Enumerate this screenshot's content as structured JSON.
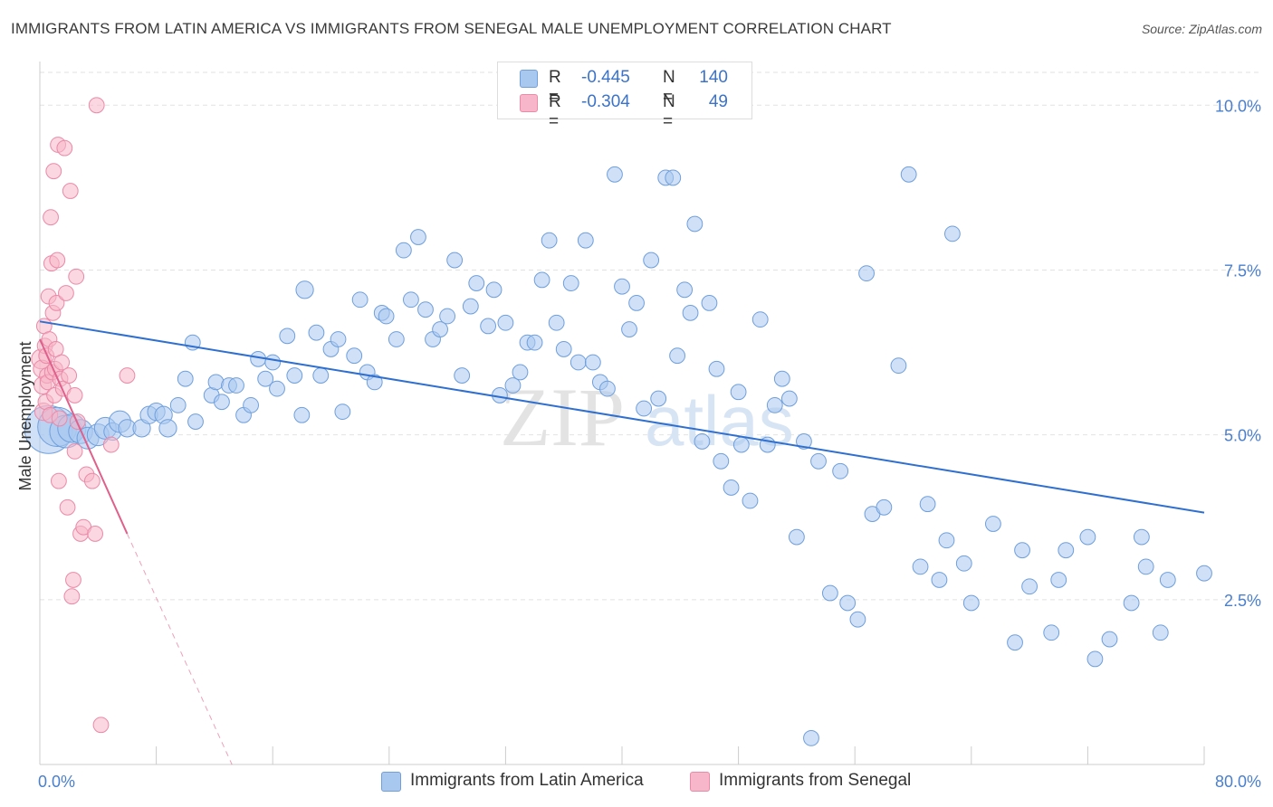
{
  "title": "IMMIGRANTS FROM LATIN AMERICA VS IMMIGRANTS FROM SENEGAL MALE UNEMPLOYMENT CORRELATION CHART",
  "source": "Source: ZipAtlas.com",
  "watermark": {
    "zip": "ZIP",
    "atlas": "atlas"
  },
  "legend": {
    "series1": {
      "r_label": "R =",
      "r_value": "-0.445",
      "n_label": "N =",
      "n_value": "140"
    },
    "series2": {
      "r_label": "R =",
      "r_value": "-0.304",
      "n_label": "N =",
      "n_value": "49"
    }
  },
  "chart_data": {
    "type": "scatter",
    "ylabel": "Male Unemployment",
    "xlim": [
      0,
      80
    ],
    "ylim": [
      0,
      10.8
    ],
    "x_tick_labels": [
      {
        "value": 0,
        "label": "0.0%"
      },
      {
        "value": 80,
        "label": "80.0%"
      }
    ],
    "y_ticks": [
      {
        "value": 2.5,
        "label": "2.5%"
      },
      {
        "value": 5.0,
        "label": "5.0%"
      },
      {
        "value": 7.5,
        "label": "7.5%"
      },
      {
        "value": 10.0,
        "label": "10.0%"
      }
    ],
    "grid": "horizontal-dashed",
    "colors": {
      "blue_fill": "#a9c8f0",
      "blue_stroke": "#6f9fdc",
      "blue_line": "#2f6fd0",
      "pink_fill": "#f7b6c9",
      "pink_stroke": "#ea8aa8",
      "pink_line": "#e0608c",
      "axis_label": "#4a7fce"
    },
    "series": [
      {
        "name": "Immigrants from Latin America",
        "trend": {
          "x0": 0,
          "y0": 6.72,
          "x1": 80,
          "y1": 3.82
        },
        "points": [
          [
            0.6,
            5.08,
            2.2
          ],
          [
            1.2,
            5.12,
            1.8
          ],
          [
            1.8,
            5.05,
            1.5
          ],
          [
            2.2,
            5.1,
            1.3
          ],
          [
            2.8,
            5.05,
            1.1
          ],
          [
            3.3,
            4.95,
            1.0
          ],
          [
            4,
            5.0,
            1.0
          ],
          [
            4.5,
            5.1,
            1.0
          ],
          [
            5,
            5.05,
            0.8
          ],
          [
            5.5,
            5.2,
            1.0
          ],
          [
            6,
            5.1,
            0.8
          ],
          [
            7,
            5.1,
            0.8
          ],
          [
            7.5,
            5.3,
            0.8
          ],
          [
            8,
            5.35,
            0.8
          ],
          [
            8.5,
            5.3,
            0.8
          ],
          [
            8.8,
            5.1,
            0.8
          ],
          [
            9.5,
            5.45,
            0.7
          ],
          [
            10,
            5.85,
            0.7
          ],
          [
            10.5,
            6.4,
            0.7
          ],
          [
            10.7,
            5.2,
            0.7
          ],
          [
            11.8,
            5.6,
            0.7
          ],
          [
            12.1,
            5.8,
            0.7
          ],
          [
            12.5,
            5.5,
            0.7
          ],
          [
            13,
            5.75,
            0.7
          ],
          [
            13.5,
            5.75,
            0.7
          ],
          [
            14,
            5.3,
            0.7
          ],
          [
            14.5,
            5.45,
            0.7
          ],
          [
            15,
            6.15,
            0.7
          ],
          [
            15.5,
            5.85,
            0.7
          ],
          [
            16,
            6.1,
            0.7
          ],
          [
            16.3,
            5.7,
            0.7
          ],
          [
            17,
            6.5,
            0.7
          ],
          [
            17.5,
            5.9,
            0.7
          ],
          [
            18,
            5.3,
            0.7
          ],
          [
            18.2,
            7.2,
            0.8
          ],
          [
            19,
            6.55,
            0.7
          ],
          [
            19.3,
            5.9,
            0.7
          ],
          [
            20,
            6.3,
            0.7
          ],
          [
            20.5,
            6.45,
            0.7
          ],
          [
            20.8,
            5.35,
            0.7
          ],
          [
            21.6,
            6.2,
            0.7
          ],
          [
            22,
            7.05,
            0.7
          ],
          [
            22.5,
            5.95,
            0.7
          ],
          [
            23,
            5.8,
            0.7
          ],
          [
            23.5,
            6.85,
            0.7
          ],
          [
            23.8,
            6.8,
            0.7
          ],
          [
            24.5,
            6.45,
            0.7
          ],
          [
            25,
            7.8,
            0.7
          ],
          [
            25.5,
            7.05,
            0.7
          ],
          [
            26,
            8.0,
            0.7
          ],
          [
            26.5,
            6.9,
            0.7
          ],
          [
            27,
            6.45,
            0.7
          ],
          [
            27.5,
            6.6,
            0.7
          ],
          [
            28,
            6.8,
            0.7
          ],
          [
            28.5,
            7.65,
            0.7
          ],
          [
            29,
            5.9,
            0.7
          ],
          [
            29.6,
            6.95,
            0.7
          ],
          [
            30,
            7.3,
            0.7
          ],
          [
            30.8,
            6.65,
            0.7
          ],
          [
            31.2,
            7.2,
            0.7
          ],
          [
            31.6,
            5.6,
            0.7
          ],
          [
            32,
            6.7,
            0.7
          ],
          [
            32.5,
            5.75,
            0.7
          ],
          [
            33,
            5.95,
            0.7
          ],
          [
            33.5,
            6.4,
            0.7
          ],
          [
            34,
            6.4,
            0.7
          ],
          [
            34.5,
            7.35,
            0.7
          ],
          [
            35,
            7.95,
            0.7
          ],
          [
            35.5,
            6.7,
            0.7
          ],
          [
            36,
            6.3,
            0.7
          ],
          [
            36.5,
            7.3,
            0.7
          ],
          [
            37,
            6.1,
            0.7
          ],
          [
            37.5,
            7.95,
            0.7
          ],
          [
            38,
            6.1,
            0.7
          ],
          [
            38.5,
            5.8,
            0.7
          ],
          [
            39,
            5.7,
            0.7
          ],
          [
            39.5,
            8.95,
            0.7
          ],
          [
            40,
            7.25,
            0.7
          ],
          [
            40.5,
            6.6,
            0.7
          ],
          [
            41,
            7.0,
            0.7
          ],
          [
            41.5,
            5.4,
            0.7
          ],
          [
            42,
            7.65,
            0.7
          ],
          [
            42.5,
            5.55,
            0.7
          ],
          [
            43,
            8.9,
            0.7
          ],
          [
            43.5,
            8.9,
            0.7
          ],
          [
            43.8,
            6.2,
            0.7
          ],
          [
            44.3,
            7.2,
            0.7
          ],
          [
            44.7,
            6.85,
            0.7
          ],
          [
            45,
            8.2,
            0.7
          ],
          [
            45.5,
            4.9,
            0.7
          ],
          [
            46,
            7.0,
            0.7
          ],
          [
            46.5,
            6.0,
            0.7
          ],
          [
            46.8,
            4.6,
            0.7
          ],
          [
            47.5,
            4.2,
            0.7
          ],
          [
            48,
            5.65,
            0.7
          ],
          [
            48.2,
            4.85,
            0.7
          ],
          [
            48.8,
            4.0,
            0.7
          ],
          [
            49.5,
            6.75,
            0.7
          ],
          [
            50,
            4.85,
            0.7
          ],
          [
            50.5,
            5.45,
            0.7
          ],
          [
            51,
            5.85,
            0.7
          ],
          [
            51.5,
            5.55,
            0.7
          ],
          [
            52,
            3.45,
            0.7
          ],
          [
            52.5,
            4.9,
            0.7
          ],
          [
            53.5,
            4.6,
            0.7
          ],
          [
            54.3,
            2.6,
            0.7
          ],
          [
            55,
            4.45,
            0.7
          ],
          [
            55.5,
            2.45,
            0.7
          ],
          [
            56.2,
            2.2,
            0.7
          ],
          [
            56.8,
            7.45,
            0.7
          ],
          [
            57.2,
            3.8,
            0.7
          ],
          [
            58,
            3.9,
            0.7
          ],
          [
            59,
            6.05,
            0.7
          ],
          [
            59.7,
            8.95,
            0.7
          ],
          [
            60.5,
            3.0,
            0.7
          ],
          [
            61,
            3.95,
            0.7
          ],
          [
            61.8,
            2.8,
            0.7
          ],
          [
            62.3,
            3.4,
            0.7
          ],
          [
            62.7,
            8.05,
            0.7
          ],
          [
            63.5,
            3.05,
            0.7
          ],
          [
            64,
            2.45,
            0.7
          ],
          [
            65.5,
            3.65,
            0.7
          ],
          [
            67,
            1.85,
            0.7
          ],
          [
            67.5,
            3.25,
            0.7
          ],
          [
            68,
            2.7,
            0.7
          ],
          [
            69.5,
            2.0,
            0.7
          ],
          [
            70,
            2.8,
            0.7
          ],
          [
            70.5,
            3.25,
            0.7
          ],
          [
            72,
            3.45,
            0.7
          ],
          [
            72.5,
            1.6,
            0.7
          ],
          [
            73.5,
            1.9,
            0.7
          ],
          [
            75,
            2.45,
            0.7
          ],
          [
            75.7,
            3.45,
            0.7
          ],
          [
            76,
            3.0,
            0.7
          ],
          [
            77,
            2.0,
            0.7
          ],
          [
            77.5,
            2.8,
            0.7
          ],
          [
            80,
            2.9,
            0.7
          ],
          [
            53,
            0.4,
            0.7
          ]
        ]
      },
      {
        "name": "Immigrants from Senegal",
        "trend": {
          "x0": 0,
          "y0": 6.45,
          "x1": 6,
          "y1": 3.5
        },
        "trend_ext": {
          "x0": 6,
          "y0": 3.5,
          "x1": 13.2,
          "y1": 0
        },
        "points": [
          [
            0.1,
            6.15,
            0.9
          ],
          [
            0.15,
            6.0,
            0.8
          ],
          [
            0.2,
            5.75,
            0.8
          ],
          [
            0.25,
            5.35,
            0.8
          ],
          [
            0.3,
            6.65,
            0.7
          ],
          [
            0.35,
            6.35,
            0.7
          ],
          [
            0.4,
            5.5,
            0.7
          ],
          [
            0.45,
            6.2,
            0.7
          ],
          [
            0.5,
            5.9,
            0.7
          ],
          [
            0.55,
            5.8,
            0.7
          ],
          [
            0.6,
            7.1,
            0.7
          ],
          [
            0.65,
            6.45,
            0.7
          ],
          [
            0.7,
            5.3,
            0.7
          ],
          [
            0.75,
            8.3,
            0.7
          ],
          [
            0.8,
            7.6,
            0.7
          ],
          [
            0.85,
            5.95,
            0.7
          ],
          [
            0.9,
            6.85,
            0.7
          ],
          [
            0.95,
            9.0,
            0.7
          ],
          [
            1.0,
            5.6,
            0.7
          ],
          [
            1.05,
            6.0,
            0.7
          ],
          [
            1.1,
            6.3,
            0.7
          ],
          [
            1.15,
            7.0,
            0.7
          ],
          [
            1.2,
            7.65,
            0.7
          ],
          [
            1.25,
            9.4,
            0.7
          ],
          [
            1.3,
            4.3,
            0.7
          ],
          [
            1.35,
            5.25,
            0.7
          ],
          [
            1.4,
            5.85,
            0.7
          ],
          [
            1.5,
            6.1,
            0.7
          ],
          [
            1.6,
            5.7,
            0.7
          ],
          [
            1.7,
            9.35,
            0.7
          ],
          [
            1.8,
            7.15,
            0.7
          ],
          [
            1.9,
            3.9,
            0.7
          ],
          [
            2.0,
            5.9,
            0.7
          ],
          [
            2.1,
            8.7,
            0.7
          ],
          [
            2.2,
            2.55,
            0.7
          ],
          [
            2.3,
            2.8,
            0.7
          ],
          [
            2.4,
            5.6,
            0.7
          ],
          [
            2.5,
            7.4,
            0.7
          ],
          [
            2.6,
            5.2,
            0.7
          ],
          [
            2.8,
            3.5,
            0.7
          ],
          [
            3.0,
            3.6,
            0.7
          ],
          [
            3.2,
            4.4,
            0.7
          ],
          [
            3.6,
            4.3,
            0.7
          ],
          [
            2.4,
            4.75,
            0.7
          ],
          [
            4.2,
            0.6,
            0.7
          ],
          [
            3.9,
            10.0,
            0.7
          ],
          [
            4.9,
            4.85,
            0.7
          ],
          [
            3.8,
            3.5,
            0.7
          ],
          [
            6.0,
            5.9,
            0.7
          ]
        ]
      }
    ]
  }
}
